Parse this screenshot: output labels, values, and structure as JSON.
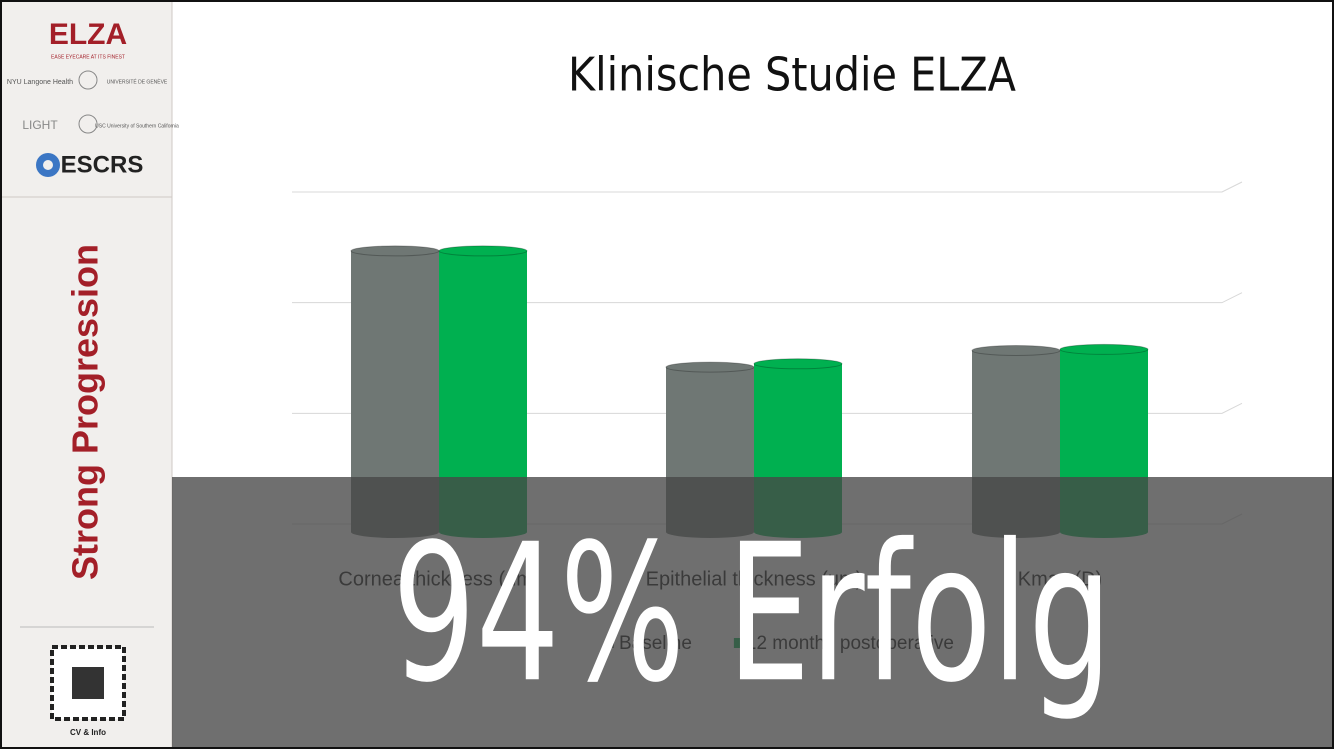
{
  "sidebar": {
    "logo": "ELZA",
    "tagline": "EASE EYECARE AT ITS FINEST",
    "partners": [
      "NYU Langone Health",
      "UNIVERSITÉ DE GENÈVE",
      "LIGHT",
      "USC University of Southern California"
    ],
    "society": "ESCRS",
    "banner": "Strong Progression",
    "qr_caption": "CV & Info"
  },
  "chart_data": {
    "type": "bar",
    "title": "Klinische Studie ELZA",
    "categories": [
      "Cornea thickness (um)",
      "Epithelial thickness (um)",
      "Kmax (D)"
    ],
    "series": [
      {
        "name": "Baseline",
        "color": "#6f7774",
        "values": [
          2.54,
          1.49,
          1.64
        ]
      },
      {
        "name": "12 months postoperative",
        "color": "#00b050",
        "values": [
          2.54,
          1.52,
          1.65
        ]
      }
    ],
    "ylim": [
      0,
      3
    ],
    "yticks": [
      0,
      1,
      2,
      3
    ],
    "grid": true
  },
  "overlay": "94% Erfolg"
}
